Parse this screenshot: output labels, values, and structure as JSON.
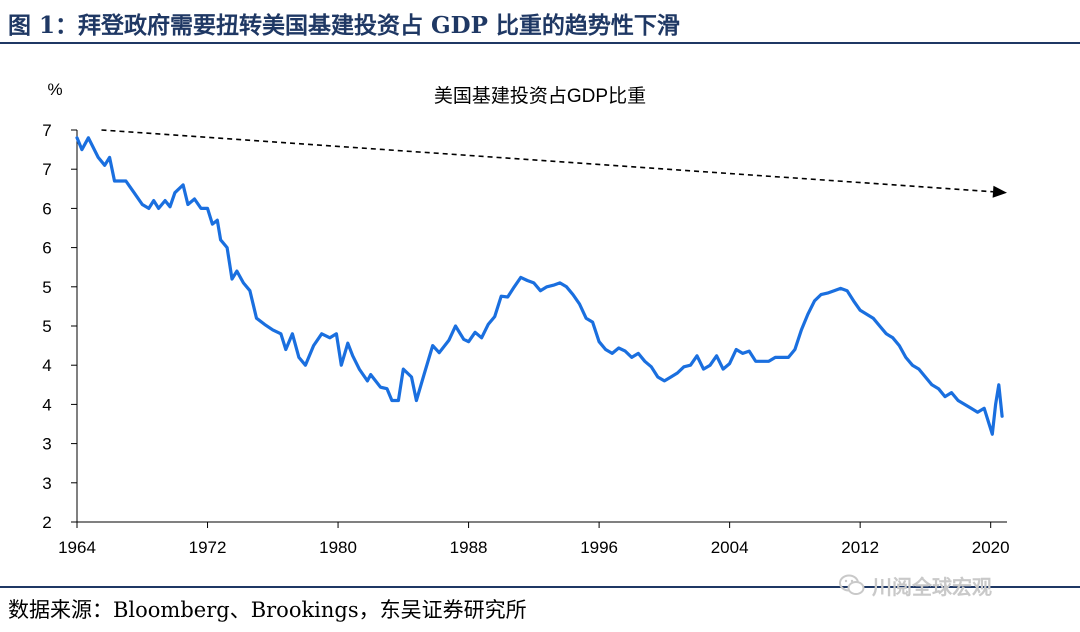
{
  "figure": {
    "title": "图 1：拜登政府需要扭转美国基建投资占 GDP 比重的趋势性下滑",
    "source": "数据来源：Bloomberg、Brookings，东吴证券研究所",
    "watermark": "川阅全球宏观",
    "accent_color": "#1f3864"
  },
  "chart_data": {
    "type": "line",
    "title": "美国基建投资占GDP比重",
    "ylabel": "%",
    "xlabel": "",
    "ylim": [
      2,
      7
    ],
    "xlim": [
      1964,
      2021
    ],
    "y_tick_values": [
      2,
      2.5,
      3,
      3.5,
      4,
      4.5,
      5,
      5.5,
      6,
      6.5,
      7
    ],
    "y_tick_labels": [
      "2",
      "3",
      "3",
      "4",
      "4",
      "5",
      "5",
      "6",
      "6",
      "7",
      "7"
    ],
    "x_tick_values": [
      1964,
      1972,
      1980,
      1988,
      1996,
      2004,
      2012,
      2020
    ],
    "x_tick_labels": [
      "1964",
      "1972",
      "1980",
      "1988",
      "1996",
      "2004",
      "2012",
      "2020"
    ],
    "grid": false,
    "line_color": "#1a6fdf",
    "series": [
      {
        "values": [
          [
            1964.0,
            6.9
          ],
          [
            1964.3,
            6.75
          ],
          [
            1964.7,
            6.9
          ],
          [
            1965.3,
            6.65
          ],
          [
            1965.7,
            6.55
          ],
          [
            1966.0,
            6.65
          ],
          [
            1966.3,
            6.35
          ],
          [
            1967.0,
            6.35
          ],
          [
            1967.5,
            6.2
          ],
          [
            1968.0,
            6.05
          ],
          [
            1968.4,
            6.0
          ],
          [
            1968.7,
            6.1
          ],
          [
            1969.0,
            6.0
          ],
          [
            1969.4,
            6.1
          ],
          [
            1969.7,
            6.02
          ],
          [
            1970.0,
            6.2
          ],
          [
            1970.5,
            6.3
          ],
          [
            1970.8,
            6.05
          ],
          [
            1971.2,
            6.12
          ],
          [
            1971.6,
            6.0
          ],
          [
            1972.0,
            6.0
          ],
          [
            1972.3,
            5.8
          ],
          [
            1972.6,
            5.85
          ],
          [
            1972.8,
            5.6
          ],
          [
            1973.2,
            5.5
          ],
          [
            1973.5,
            5.1
          ],
          [
            1973.8,
            5.2
          ],
          [
            1974.2,
            5.05
          ],
          [
            1974.6,
            4.95
          ],
          [
            1975.0,
            4.6
          ],
          [
            1975.5,
            4.52
          ],
          [
            1976.0,
            4.45
          ],
          [
            1976.5,
            4.4
          ],
          [
            1976.8,
            4.2
          ],
          [
            1977.2,
            4.4
          ],
          [
            1977.6,
            4.1
          ],
          [
            1978.0,
            4.0
          ],
          [
            1978.5,
            4.25
          ],
          [
            1979.0,
            4.4
          ],
          [
            1979.5,
            4.35
          ],
          [
            1979.9,
            4.4
          ],
          [
            1980.2,
            4.0
          ],
          [
            1980.6,
            4.28
          ],
          [
            1980.9,
            4.12
          ],
          [
            1981.3,
            3.95
          ],
          [
            1981.8,
            3.8
          ],
          [
            1982.0,
            3.88
          ],
          [
            1982.6,
            3.72
          ],
          [
            1983.0,
            3.7
          ],
          [
            1983.3,
            3.55
          ],
          [
            1983.7,
            3.55
          ],
          [
            1984.0,
            3.95
          ],
          [
            1984.5,
            3.85
          ],
          [
            1984.8,
            3.55
          ],
          [
            1985.3,
            3.9
          ],
          [
            1985.8,
            4.25
          ],
          [
            1986.2,
            4.16
          ],
          [
            1986.8,
            4.32
          ],
          [
            1987.2,
            4.5
          ],
          [
            1987.7,
            4.33
          ],
          [
            1988.0,
            4.3
          ],
          [
            1988.4,
            4.42
          ],
          [
            1988.8,
            4.35
          ],
          [
            1989.2,
            4.52
          ],
          [
            1989.6,
            4.62
          ],
          [
            1990.0,
            4.88
          ],
          [
            1990.4,
            4.87
          ],
          [
            1990.8,
            5.0
          ],
          [
            1991.2,
            5.12
          ],
          [
            1991.6,
            5.08
          ],
          [
            1992.0,
            5.05
          ],
          [
            1992.4,
            4.95
          ],
          [
            1992.8,
            5.0
          ],
          [
            1993.2,
            5.02
          ],
          [
            1993.6,
            5.05
          ],
          [
            1994.0,
            5.0
          ],
          [
            1994.4,
            4.9
          ],
          [
            1994.8,
            4.78
          ],
          [
            1995.2,
            4.6
          ],
          [
            1995.6,
            4.55
          ],
          [
            1996.0,
            4.3
          ],
          [
            1996.4,
            4.2
          ],
          [
            1996.8,
            4.15
          ],
          [
            1997.2,
            4.22
          ],
          [
            1997.6,
            4.18
          ],
          [
            1998.0,
            4.1
          ],
          [
            1998.4,
            4.15
          ],
          [
            1998.8,
            4.05
          ],
          [
            1999.2,
            3.98
          ],
          [
            1999.6,
            3.85
          ],
          [
            2000.0,
            3.8
          ],
          [
            2000.4,
            3.85
          ],
          [
            2000.8,
            3.9
          ],
          [
            2001.2,
            3.98
          ],
          [
            2001.6,
            4.0
          ],
          [
            2002.0,
            4.12
          ],
          [
            2002.4,
            3.95
          ],
          [
            2002.8,
            4.0
          ],
          [
            2003.2,
            4.12
          ],
          [
            2003.6,
            3.95
          ],
          [
            2004.0,
            4.02
          ],
          [
            2004.4,
            4.2
          ],
          [
            2004.8,
            4.15
          ],
          [
            2005.2,
            4.18
          ],
          [
            2005.6,
            4.05
          ],
          [
            2006.0,
            4.05
          ],
          [
            2006.4,
            4.05
          ],
          [
            2006.8,
            4.1
          ],
          [
            2007.2,
            4.1
          ],
          [
            2007.6,
            4.1
          ],
          [
            2008.0,
            4.2
          ],
          [
            2008.4,
            4.45
          ],
          [
            2008.8,
            4.65
          ],
          [
            2009.2,
            4.82
          ],
          [
            2009.6,
            4.9
          ],
          [
            2010.0,
            4.92
          ],
          [
            2010.4,
            4.95
          ],
          [
            2010.8,
            4.98
          ],
          [
            2011.2,
            4.95
          ],
          [
            2011.6,
            4.82
          ],
          [
            2012.0,
            4.7
          ],
          [
            2012.4,
            4.65
          ],
          [
            2012.8,
            4.6
          ],
          [
            2013.2,
            4.5
          ],
          [
            2013.6,
            4.4
          ],
          [
            2014.0,
            4.35
          ],
          [
            2014.4,
            4.25
          ],
          [
            2014.8,
            4.1
          ],
          [
            2015.2,
            4.0
          ],
          [
            2015.6,
            3.95
          ],
          [
            2016.0,
            3.85
          ],
          [
            2016.4,
            3.75
          ],
          [
            2016.8,
            3.7
          ],
          [
            2017.2,
            3.6
          ],
          [
            2017.6,
            3.65
          ],
          [
            2018.0,
            3.55
          ],
          [
            2018.4,
            3.5
          ],
          [
            2018.8,
            3.45
          ],
          [
            2019.2,
            3.4
          ],
          [
            2019.6,
            3.45
          ],
          [
            2019.9,
            3.25
          ],
          [
            2020.1,
            3.12
          ],
          [
            2020.3,
            3.5
          ],
          [
            2020.5,
            3.75
          ],
          [
            2020.7,
            3.35
          ]
        ]
      }
    ],
    "annotation": {
      "type": "trend-arrow",
      "from": [
        1965.5,
        7.0
      ],
      "to": [
        2021.0,
        6.2
      ],
      "style": "dashed",
      "color": "#000000"
    }
  }
}
